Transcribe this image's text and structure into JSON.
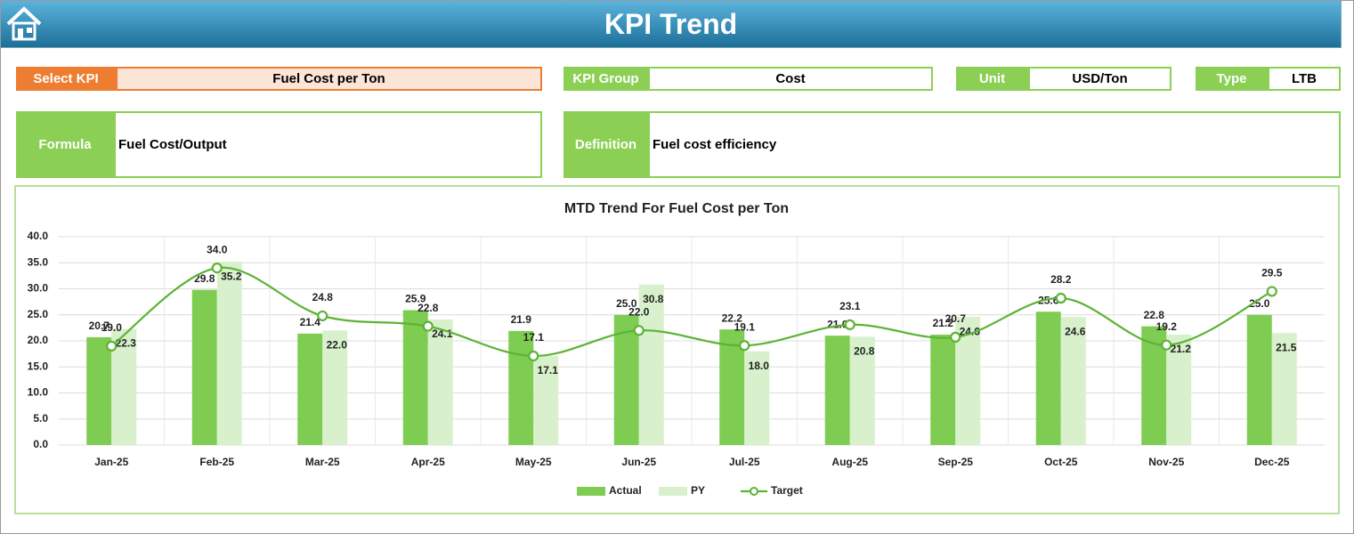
{
  "header": {
    "title": "KPI Trend"
  },
  "fields": {
    "select_kpi": {
      "label": "Select KPI",
      "value": "Fuel Cost per Ton"
    },
    "kpi_group": {
      "label": "KPI Group",
      "value": "Cost"
    },
    "unit": {
      "label": "Unit",
      "value": "USD/Ton"
    },
    "kpi_type": {
      "label": "Type",
      "value": "LTB"
    },
    "formula": {
      "label": "Formula",
      "value": "Fuel Cost/Output"
    },
    "definition": {
      "label": "Definition",
      "value": "Fuel cost efficiency"
    }
  },
  "chart_data": {
    "type": "bar",
    "title": "MTD Trend For Fuel Cost per Ton",
    "categories": [
      "Jan-25",
      "Feb-25",
      "Mar-25",
      "Apr-25",
      "May-25",
      "Jun-25",
      "Jul-25",
      "Aug-25",
      "Sep-25",
      "Oct-25",
      "Nov-25",
      "Dec-25"
    ],
    "series": [
      {
        "name": "Actual",
        "color": "#7fcc52",
        "values": [
          20.7,
          29.8,
          21.4,
          25.9,
          21.9,
          25.0,
          22.2,
          21.0,
          21.2,
          25.6,
          22.8,
          25.0
        ],
        "value_labels": [
          "20.7",
          "29.8",
          "21.4",
          "25.9",
          "21.9",
          "25.0",
          "22.2",
          "21.0",
          "21.2",
          "25.6",
          "22.8",
          "25.0"
        ]
      },
      {
        "name": "PY",
        "color": "#d8f1cc",
        "values": [
          22.3,
          35.2,
          22.0,
          24.1,
          17.1,
          30.8,
          18.0,
          20.8,
          24.6,
          24.6,
          21.2,
          21.5
        ],
        "value_labels": [
          "22.3",
          "35.2",
          "22.0",
          "24.1",
          "17.1",
          "30.8",
          "18.0",
          "20.8",
          "24.6",
          "24.6",
          "21.2",
          "21.5"
        ]
      },
      {
        "name": "Target",
        "type": "line",
        "color": "#5cb335",
        "values": [
          19.0,
          34.0,
          24.8,
          22.8,
          17.1,
          22.0,
          19.1,
          23.1,
          20.7,
          28.2,
          19.2,
          29.5
        ],
        "value_labels": [
          "19.0",
          "34.0",
          "24.8",
          "22.8",
          "17.1",
          "22.0",
          "19.1",
          "23.1",
          "20.7",
          "28.2",
          "19.2",
          "29.5"
        ]
      }
    ],
    "ylim": [
      0,
      40
    ],
    "yticks": [
      {
        "value": 0,
        "label": "0.0"
      },
      {
        "value": 5,
        "label": "5.0"
      },
      {
        "value": 10,
        "label": "10.0"
      },
      {
        "value": 15,
        "label": "15.0"
      },
      {
        "value": 20,
        "label": "20.0"
      },
      {
        "value": 25,
        "label": "25.0"
      },
      {
        "value": 30,
        "label": "30.0"
      },
      {
        "value": 35,
        "label": "35.0"
      },
      {
        "value": 40,
        "label": "40.0"
      }
    ],
    "grid": true,
    "legend": "bottom"
  }
}
